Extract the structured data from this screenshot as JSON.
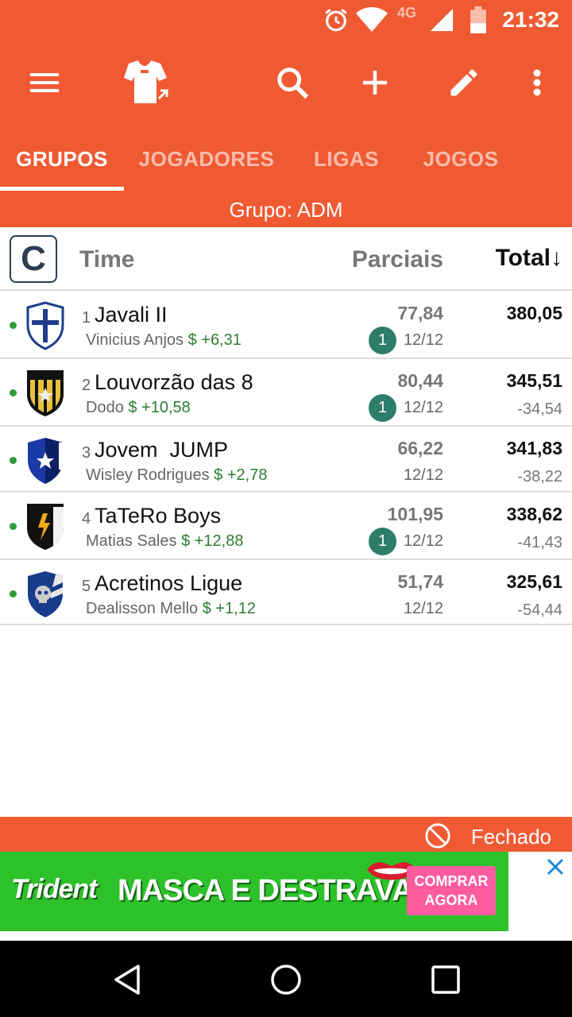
{
  "status_bar": {
    "time": "21:32",
    "network": "4G"
  },
  "toolbar": {
    "icons": [
      "menu-icon",
      "jersey-transfer-icon",
      "search-icon",
      "add-icon",
      "edit-icon",
      "more-vert-icon"
    ]
  },
  "tabs": [
    {
      "label": "GRUPOS",
      "active": true
    },
    {
      "label": "JOGADORES",
      "active": false
    },
    {
      "label": "LIGAS",
      "active": false
    },
    {
      "label": "JOGOS",
      "active": false
    }
  ],
  "group_banner": "Grupo: ADM",
  "table": {
    "badge": "C",
    "col_time": "Time",
    "col_parciais": "Parciais",
    "col_total": "Total↓",
    "rows": [
      {
        "rank": "1",
        "team": "Javali II",
        "owner": "Vinicius Anjos",
        "money": "$ +6,31",
        "parcial": "77,84",
        "round": "12/12",
        "badge": "1",
        "total": "380,05",
        "diff": ""
      },
      {
        "rank": "2",
        "team": "Louvorzão das 8",
        "owner": "Dodo",
        "money": "$ +10,58",
        "parcial": "80,44",
        "round": "12/12",
        "badge": "1",
        "total": "345,51",
        "diff": "-34,54"
      },
      {
        "rank": "3",
        "team": "Jovem  JUMP",
        "owner": "Wisley Rodrigues",
        "money": "$ +2,78",
        "parcial": "66,22",
        "round": "12/12",
        "badge": "",
        "total": "341,83",
        "diff": "-38,22"
      },
      {
        "rank": "4",
        "team": "TaTeRo Boys",
        "owner": "Matias Sales",
        "money": "$ +12,88",
        "parcial": "101,95",
        "round": "12/12",
        "badge": "1",
        "total": "338,62",
        "diff": "-41,43"
      },
      {
        "rank": "5",
        "team": "Acretinos Ligue",
        "owner": "Dealisson Mello",
        "money": "$ +1,12",
        "parcial": "51,74",
        "round": "12/12",
        "badge": "",
        "total": "325,61",
        "diff": "-54,44"
      }
    ]
  },
  "footer_status": "Fechado",
  "ad": {
    "brand": "Trident",
    "slogan": "MASCA E DESTRAVA",
    "cta_line1": "COMPRAR",
    "cta_line2": "AGORA"
  },
  "colors": {
    "primary": "#f05a33",
    "money": "#2e7d32",
    "badge": "#2e7d6b"
  }
}
